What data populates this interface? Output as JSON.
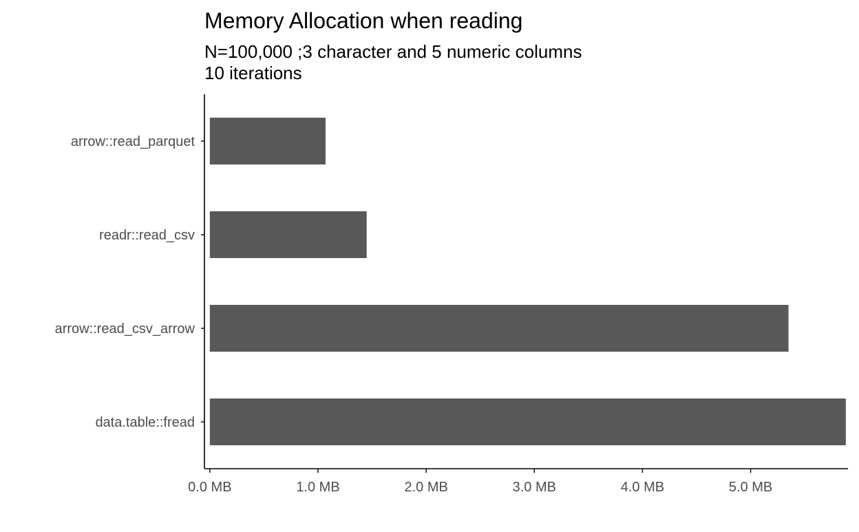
{
  "chart_data": {
    "type": "bar",
    "orientation": "horizontal",
    "title": "Memory Allocation when reading",
    "subtitle_lines": [
      "N=100,000 ;3 character and 5 numeric columns",
      "10 iterations"
    ],
    "xlabel": "",
    "ylabel": "",
    "categories": [
      "arrow::read_parquet",
      "readr::read_csv",
      "arrow::read_csv_arrow",
      "data.table::fread"
    ],
    "values": [
      1.07,
      1.45,
      5.35,
      5.88
    ],
    "unit": "MB",
    "x_ticks": [
      0,
      1,
      2,
      3,
      4,
      5
    ],
    "x_tick_labels": [
      "0.0 MB",
      "1.0 MB",
      "2.0 MB",
      "3.0 MB",
      "4.0 MB",
      "5.0 MB"
    ],
    "xlim": [
      -0.05,
      5.9
    ],
    "grid": false,
    "legend": "none",
    "bar_color": "#595959",
    "axis_color": "#000000"
  }
}
